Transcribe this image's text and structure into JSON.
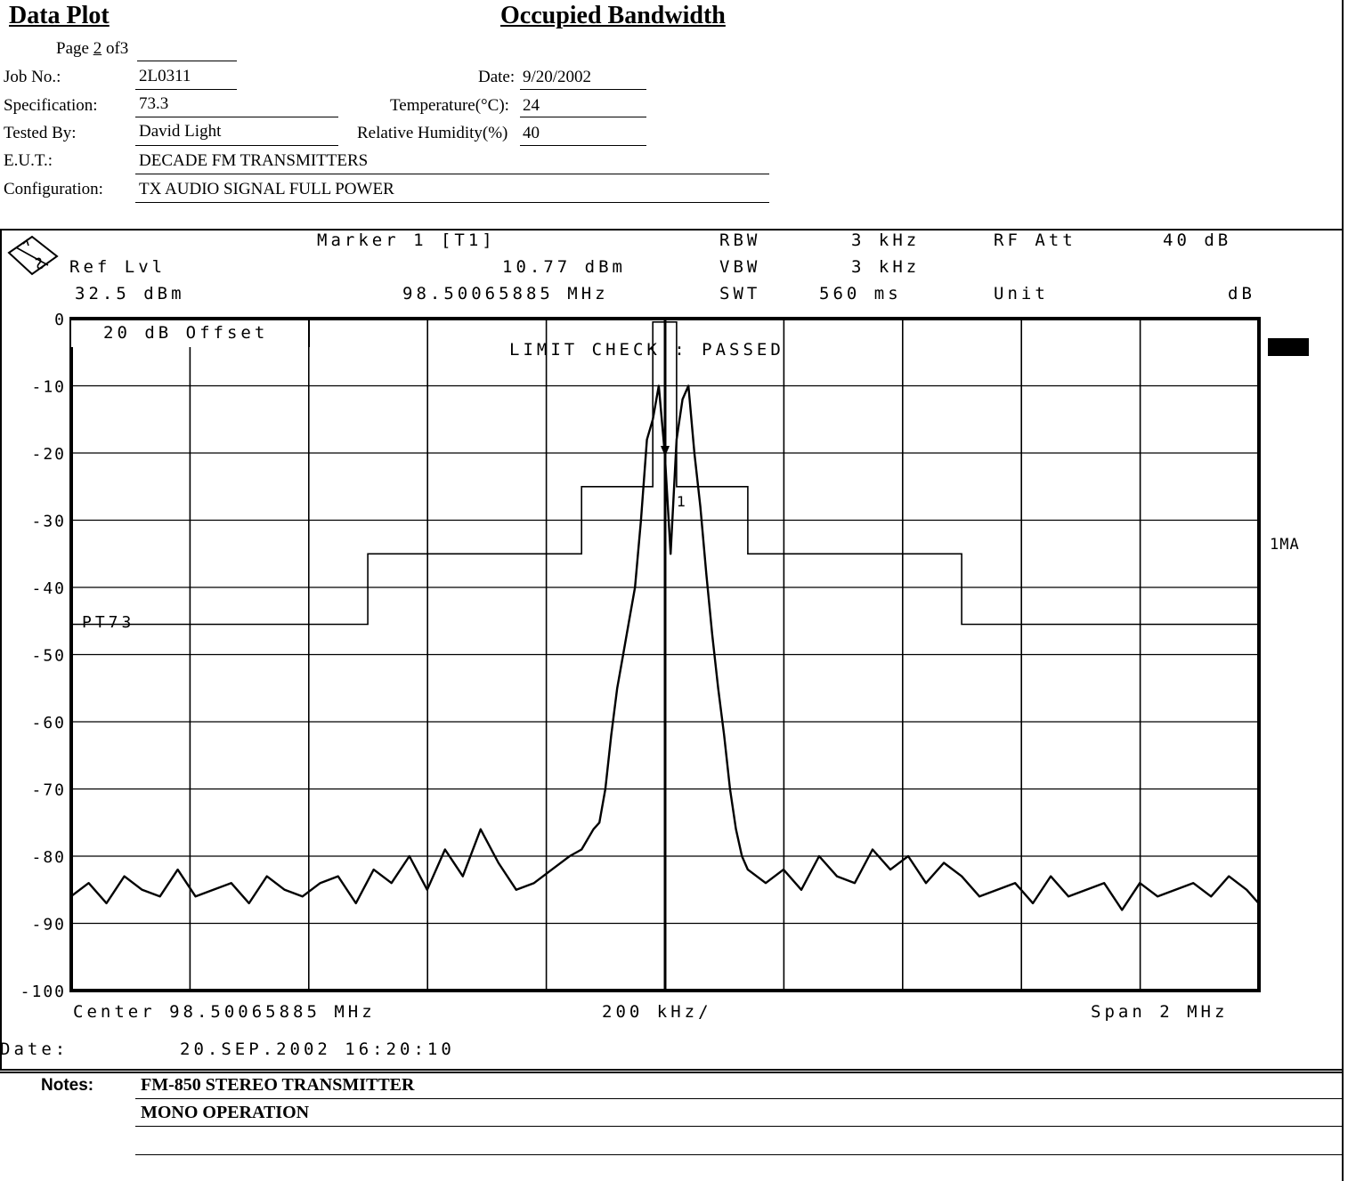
{
  "header": {
    "left_title": "Data Plot",
    "center_title": "Occupied Bandwidth",
    "page_prefix": "Page",
    "page_num": "2",
    "page_of": "of",
    "page_total": "3",
    "fields": [
      {
        "label": "Job No.:",
        "value": "2L0311"
      },
      {
        "label": "Specification:",
        "value": "73.3"
      },
      {
        "label": "Tested By:",
        "value": "David Light"
      },
      {
        "label": "E.U.T.:",
        "value": "DECADE FM TRANSMITTERS"
      },
      {
        "label": "Configuration:",
        "value": "TX AUDIO SIGNAL FULL POWER"
      }
    ],
    "right_fields": [
      {
        "label": "Date:",
        "value": "9/20/2002"
      },
      {
        "label": "Temperature(°C):",
        "value": "24"
      },
      {
        "label": "Relative Humidity(%)",
        "value": "40"
      }
    ]
  },
  "analyzer": {
    "marker_label": "Marker 1 [T1]",
    "ref_lvl_label": "Ref Lvl",
    "ref_lvl_value": "32.5 dBm",
    "marker_level": "10.77 dBm",
    "marker_freq": "98.50065885 MHz",
    "rbw_label": "RBW",
    "rbw_value": "3 kHz",
    "vbw_label": "VBW",
    "vbw_value": "3 kHz",
    "swt_label": "SWT",
    "swt_value": "560 ms",
    "rfatt_label": "RF Att",
    "rfatt_value": "40 dB",
    "unit_label": "Unit",
    "unit_value": "dB",
    "offset_text": "20 dB Offset",
    "limit_text": "LIMIT CHECK   : PASSED",
    "limit_line_label": "PT73",
    "marker_tag": "1",
    "trace_tag": "1MA",
    "center_text": "Center 98.50065885 MHz",
    "span_div_text": "200 kHz/",
    "span_text": "Span 2 MHz",
    "date_label": "Date:",
    "date_value": "20.SEP.2002  16:20:10"
  },
  "chart_data": {
    "type": "line",
    "xlabel": "",
    "ylabel": "",
    "x_unit": "MHz",
    "xlim": [
      97.50065885,
      99.50065885
    ],
    "ylim": [
      -100,
      0
    ],
    "yticks": [
      0,
      -10,
      -20,
      -30,
      -40,
      -50,
      -60,
      -70,
      -80,
      -90,
      -100
    ],
    "ytick_labels": [
      "0",
      "-10",
      "-20",
      "-30",
      "-40",
      "-50",
      "-60",
      "-70",
      "-80",
      "-90",
      "-100"
    ],
    "grid": true,
    "limit_line": {
      "name": "PT73",
      "x": [
        97.50065885,
        98.0,
        98.0,
        98.36,
        98.36,
        98.48,
        98.48,
        98.52,
        98.52,
        98.64,
        98.64,
        99.0,
        99.0,
        99.50065885
      ],
      "y": [
        -45.5,
        -45.5,
        -35,
        -35,
        -25,
        -25,
        -0.5,
        -0.5,
        -25,
        -25,
        -35,
        -35,
        -45.5,
        -45.5
      ]
    },
    "series": [
      {
        "x": [
          97.5,
          97.53,
          97.56,
          97.59,
          97.62,
          97.65,
          97.68,
          97.71,
          97.74,
          97.77,
          97.8,
          97.83,
          97.86,
          97.89,
          97.92,
          97.95,
          97.98,
          98.01,
          98.04,
          98.07,
          98.1,
          98.13,
          98.16,
          98.19,
          98.22,
          98.25,
          98.28,
          98.31,
          98.34,
          98.36,
          98.38,
          98.39,
          98.4,
          98.41,
          98.42,
          98.43,
          98.44,
          98.45,
          98.46,
          98.47,
          98.48,
          98.49,
          98.5,
          98.51,
          98.52,
          98.53,
          98.54,
          98.55,
          98.56,
          98.57,
          98.58,
          98.59,
          98.6,
          98.61,
          98.62,
          98.63,
          98.64,
          98.67,
          98.7,
          98.73,
          98.76,
          98.79,
          98.82,
          98.85,
          98.88,
          98.91,
          98.94,
          98.97,
          99.0,
          99.03,
          99.06,
          99.09,
          99.12,
          99.15,
          99.18,
          99.21,
          99.24,
          99.27,
          99.3,
          99.33,
          99.36,
          99.39,
          99.42,
          99.45,
          99.48,
          99.5
        ],
        "y": [
          -86,
          -84,
          -87,
          -83,
          -85,
          -86,
          -82,
          -86,
          -85,
          -84,
          -87,
          -83,
          -85,
          -86,
          -84,
          -83,
          -87,
          -82,
          -84,
          -80,
          -85,
          -79,
          -83,
          -76,
          -81,
          -85,
          -84,
          -82,
          -80,
          -79,
          -76,
          -75,
          -70,
          -62,
          -55,
          -50,
          -45,
          -40,
          -30,
          -18,
          -15,
          -10,
          -20,
          -35,
          -18,
          -12,
          -10,
          -20,
          -28,
          -38,
          -47,
          -55,
          -62,
          -70,
          -76,
          -80,
          -82,
          -84,
          -82,
          -85,
          -80,
          -83,
          -84,
          -79,
          -82,
          -80,
          -84,
          -81,
          -83,
          -86,
          -85,
          -84,
          -87,
          -83,
          -86,
          -85,
          -84,
          -88,
          -84,
          -86,
          -85,
          -84,
          -86,
          -83,
          -85,
          -87
        ]
      }
    ]
  },
  "notes": {
    "label": "Notes:",
    "lines": [
      "FM-850 STEREO TRANSMITTER",
      "MONO OPERATION",
      ""
    ]
  }
}
